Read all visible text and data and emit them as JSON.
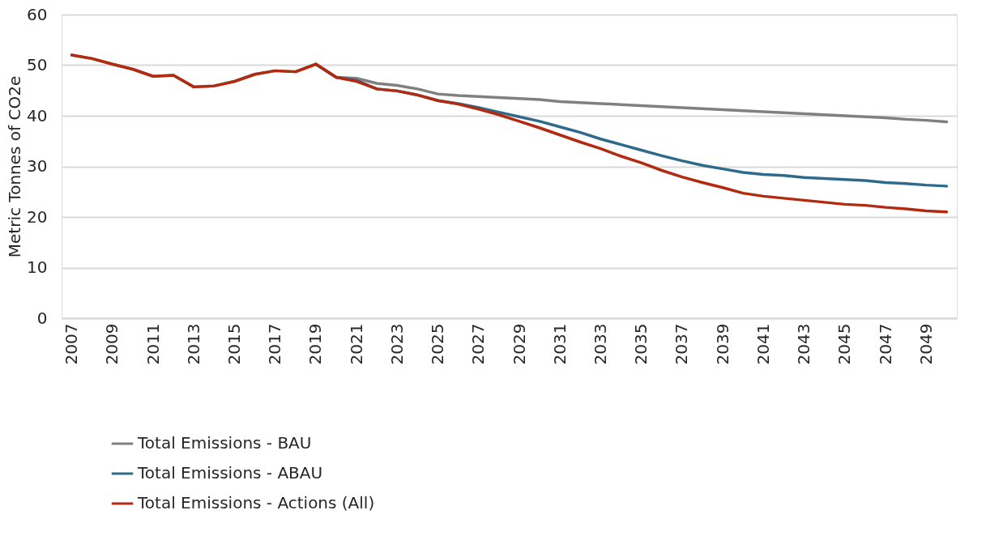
{
  "chart_data": {
    "type": "line",
    "ylabel": "Metric Tonnes of CO2e",
    "categories": [
      "2007",
      null,
      "2009",
      null,
      "2011",
      null,
      "2013",
      null,
      "2015",
      null,
      "2017",
      null,
      "2019",
      null,
      "2021",
      null,
      "2023",
      null,
      "2025",
      null,
      "2027",
      null,
      "2029",
      null,
      "2031",
      null,
      "2033",
      null,
      "2035",
      null,
      "2037",
      null,
      "2039",
      null,
      "2041",
      null,
      "2043",
      null,
      "2045",
      null,
      "2047",
      null,
      "2049",
      null
    ],
    "series": [
      {
        "name": "Total Emissions - BAU",
        "color": "#808080",
        "values": [
          52,
          51.3,
          50.2,
          49.2,
          47.8,
          48.0,
          45.7,
          45.9,
          46.8,
          48.2,
          48.9,
          48.7,
          50.2,
          47.6,
          47.4,
          46.4,
          46.0,
          45.3,
          44.3,
          44.0,
          43.8,
          43.6,
          43.4,
          43.2,
          42.8,
          42.6,
          42.4,
          42.2,
          42.0,
          41.8,
          41.6,
          41.4,
          41.2,
          41.0,
          40.8,
          40.6,
          40.4,
          40.2,
          40.0,
          39.8,
          39.6,
          39.3,
          39.1,
          38.8
        ]
      },
      {
        "name": "Total Emissions - ABAU",
        "color": "#2e6b8a",
        "values": [
          null,
          null,
          null,
          null,
          null,
          null,
          null,
          null,
          null,
          null,
          null,
          null,
          50.2,
          47.6,
          47.0,
          45.3,
          44.9,
          44.1,
          43.0,
          42.4,
          41.6,
          40.7,
          39.8,
          38.9,
          37.8,
          36.7,
          35.4,
          34.3,
          33.2,
          32.1,
          31.1,
          30.2,
          29.5,
          28.8,
          28.4,
          28.2,
          27.8,
          27.6,
          27.4,
          27.2,
          26.8,
          26.6,
          26.3,
          26.1
        ]
      },
      {
        "name": "Total Emissions - Actions (All)",
        "color": "#b22a10",
        "values": [
          52,
          51.3,
          50.2,
          49.2,
          47.8,
          48.0,
          45.7,
          45.9,
          46.8,
          48.2,
          48.9,
          48.7,
          50.2,
          47.6,
          46.8,
          45.3,
          44.9,
          44.1,
          43.0,
          42.3,
          41.3,
          40.2,
          38.9,
          37.6,
          36.2,
          34.8,
          33.5,
          32.0,
          30.7,
          29.2,
          27.9,
          26.8,
          25.8,
          24.7,
          24.1,
          23.7,
          23.3,
          22.9,
          22.5,
          22.3,
          21.9,
          21.6,
          21.2,
          21.0
        ]
      }
    ],
    "ylim": [
      0,
      60
    ],
    "yticks": [
      0,
      10,
      20,
      30,
      40,
      50,
      60
    ],
    "grid": "y",
    "legend": "bottom left",
    "marker": "none",
    "line_style": "solid"
  }
}
